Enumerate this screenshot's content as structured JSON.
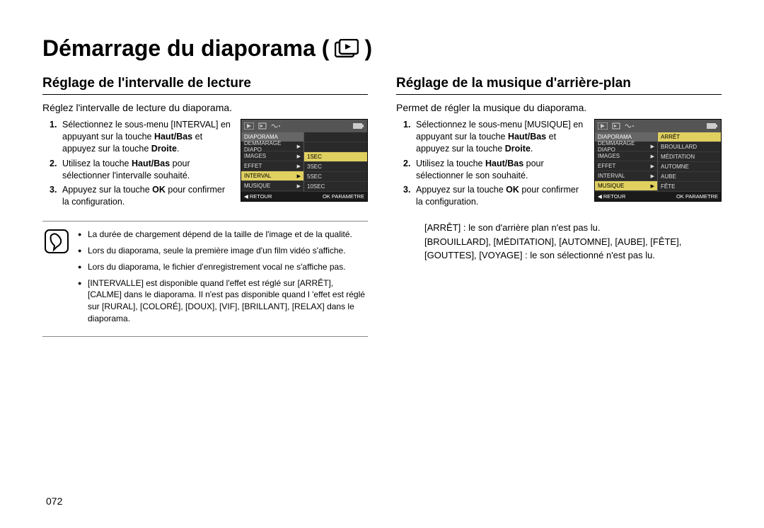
{
  "page": {
    "title_prefix": "Démarrage du diaporama (",
    "title_suffix": " )",
    "number": "072"
  },
  "left": {
    "heading": "Réglage de l'intervalle de lecture",
    "intro": "Réglez l'intervalle de lecture du diaporama.",
    "steps": [
      {
        "n": "1.",
        "html": "Sélectionnez le sous-menu [INTERVAL] en appuyant sur la touche <b>Haut/Bas</b> et appuyez sur la touche <b>Droite</b>."
      },
      {
        "n": "2.",
        "html": "Utilisez la touche <b>Haut/Bas</b> pour sélectionner l'intervalle souhaité."
      },
      {
        "n": "3.",
        "html": "Appuyez sur la touche <b>OK</b> pour confirmer la configuration."
      }
    ],
    "lcd": {
      "header": "DIAPORAMA",
      "left_rows": [
        {
          "label": "DEMMARAGE DIAPO",
          "arrow": true,
          "sel": false
        },
        {
          "label": "IMAGES",
          "arrow": true,
          "sel": false
        },
        {
          "label": "EFFET",
          "arrow": true,
          "sel": false
        },
        {
          "label": "INTERVAL",
          "arrow": true,
          "sel": true
        },
        {
          "label": "MUSIQUE",
          "arrow": true,
          "sel": false
        }
      ],
      "right_rows": [
        {
          "label": "",
          "sel": false
        },
        {
          "label": "",
          "sel": false
        },
        {
          "label": "1SEC",
          "sel": true
        },
        {
          "label": "3SEC",
          "sel": false
        },
        {
          "label": "5SEC",
          "sel": false
        },
        {
          "label": "10SEC",
          "sel": false
        }
      ],
      "bottom_left": "◀  RETOUR",
      "bottom_right": "OK  PARAMETRE"
    },
    "notes": [
      "La durée de chargement dépend de la taille de l'image et de la qualité.",
      "Lors du diaporama, seule la première image d'un film vidéo s'affiche.",
      "Lors du diaporama, le fichier d'enregistrement vocal ne s'affiche pas.",
      "[INTERVALLE] est disponible quand l'effet est réglé sur [ARRÊT], [CALME] dans le diaporama. Il n'est pas disponible quand l 'effet est réglé sur [RURAL], [COLORÉ], [DOUX], [VIF], [BRILLANT], [RELAX] dans le diaporama."
    ]
  },
  "right": {
    "heading": "Réglage de la musique d'arrière-plan",
    "intro": "Permet de régler la musique du diaporama.",
    "steps": [
      {
        "n": "1.",
        "html": "Sélectionnez le sous-menu [MUSIQUE] en appuyant sur la touche <b>Haut/Bas</b> et appuyez sur la touche <b>Droite</b>."
      },
      {
        "n": "2.",
        "html": "Utilisez la touche <b>Haut/Bas</b> pour sélectionner le son souhaité."
      },
      {
        "n": "3.",
        "html": "Appuyez sur la touche <b>OK</b> pour confirmer la configuration."
      }
    ],
    "lcd": {
      "header": "DIAPORAMA",
      "left_rows": [
        {
          "label": "DEMMARAGE DIAPO",
          "arrow": true,
          "sel": false
        },
        {
          "label": "IMAGES",
          "arrow": true,
          "sel": false
        },
        {
          "label": "EFFET",
          "arrow": true,
          "sel": false
        },
        {
          "label": "INTERVAL",
          "arrow": true,
          "sel": false
        },
        {
          "label": "MUSIQUE",
          "arrow": true,
          "sel": true
        }
      ],
      "right_rows": [
        {
          "label": "ARRÊT",
          "sel": true
        },
        {
          "label": "BROUILLARD",
          "sel": false
        },
        {
          "label": "MÉDITATION",
          "sel": false
        },
        {
          "label": "AUTOMNE",
          "sel": false
        },
        {
          "label": "AUBE",
          "sel": false
        },
        {
          "label": "FÊTE",
          "sel": false
        }
      ],
      "bottom_left": "◀  RETOUR",
      "bottom_right": "OK  PARAMETRE"
    },
    "footer": [
      "[ARRÊT] : le son d'arrière plan n'est pas lu.",
      "[BROUILLARD], [MÉDITATION], [AUTOMNE], [AUBE], [FÊTE], [GOUTTES], [VOYAGE] : le son sélectionné n'est pas lu."
    ]
  },
  "colors": {
    "lcd_bg": "#2a2a2a",
    "lcd_sel": "#e0d060",
    "text": "#000000"
  }
}
